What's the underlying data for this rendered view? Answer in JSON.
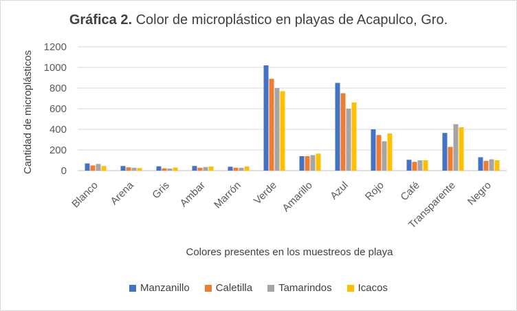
{
  "chart_data": {
    "type": "bar",
    "title_bold": "Gráfica 2.",
    "title_rest": " Color de microplástico  en playas de Acapulco,  Gro.",
    "xlabel": "Colores presentes en los muestreos de playa",
    "ylabel": "Cantidad de microplásticos",
    "ylim": [
      0,
      1200
    ],
    "yticks": [
      0,
      200,
      400,
      600,
      800,
      1000,
      1200
    ],
    "ytick_labels": [
      "0",
      "200",
      "400",
      "600",
      "800",
      "1000",
      "1200"
    ],
    "grid": true,
    "legend_position": "bottom",
    "categories": [
      "Blanco",
      "Arena",
      "Gris",
      "Ambar",
      "Marrón",
      "Verde",
      "Amarillo",
      "Azul",
      "Rojo",
      "Café",
      "Transparente",
      "Negro"
    ],
    "series": [
      {
        "name": "Manzanillo",
        "color": "#4472C4",
        "values": [
          70,
          45,
          42,
          45,
          38,
          1020,
          140,
          850,
          400,
          105,
          365,
          130
        ]
      },
      {
        "name": "Caletilla",
        "color": "#ED7D31",
        "values": [
          50,
          32,
          22,
          28,
          28,
          890,
          140,
          750,
          345,
          85,
          230,
          95
        ]
      },
      {
        "name": "Tamarindos",
        "color": "#A5A5A5",
        "values": [
          65,
          28,
          20,
          35,
          28,
          800,
          150,
          600,
          285,
          100,
          450,
          110
        ]
      },
      {
        "name": "Icacos",
        "color": "#FFC000",
        "values": [
          45,
          25,
          30,
          40,
          40,
          770,
          165,
          660,
          360,
          100,
          420,
          100
        ]
      }
    ]
  }
}
